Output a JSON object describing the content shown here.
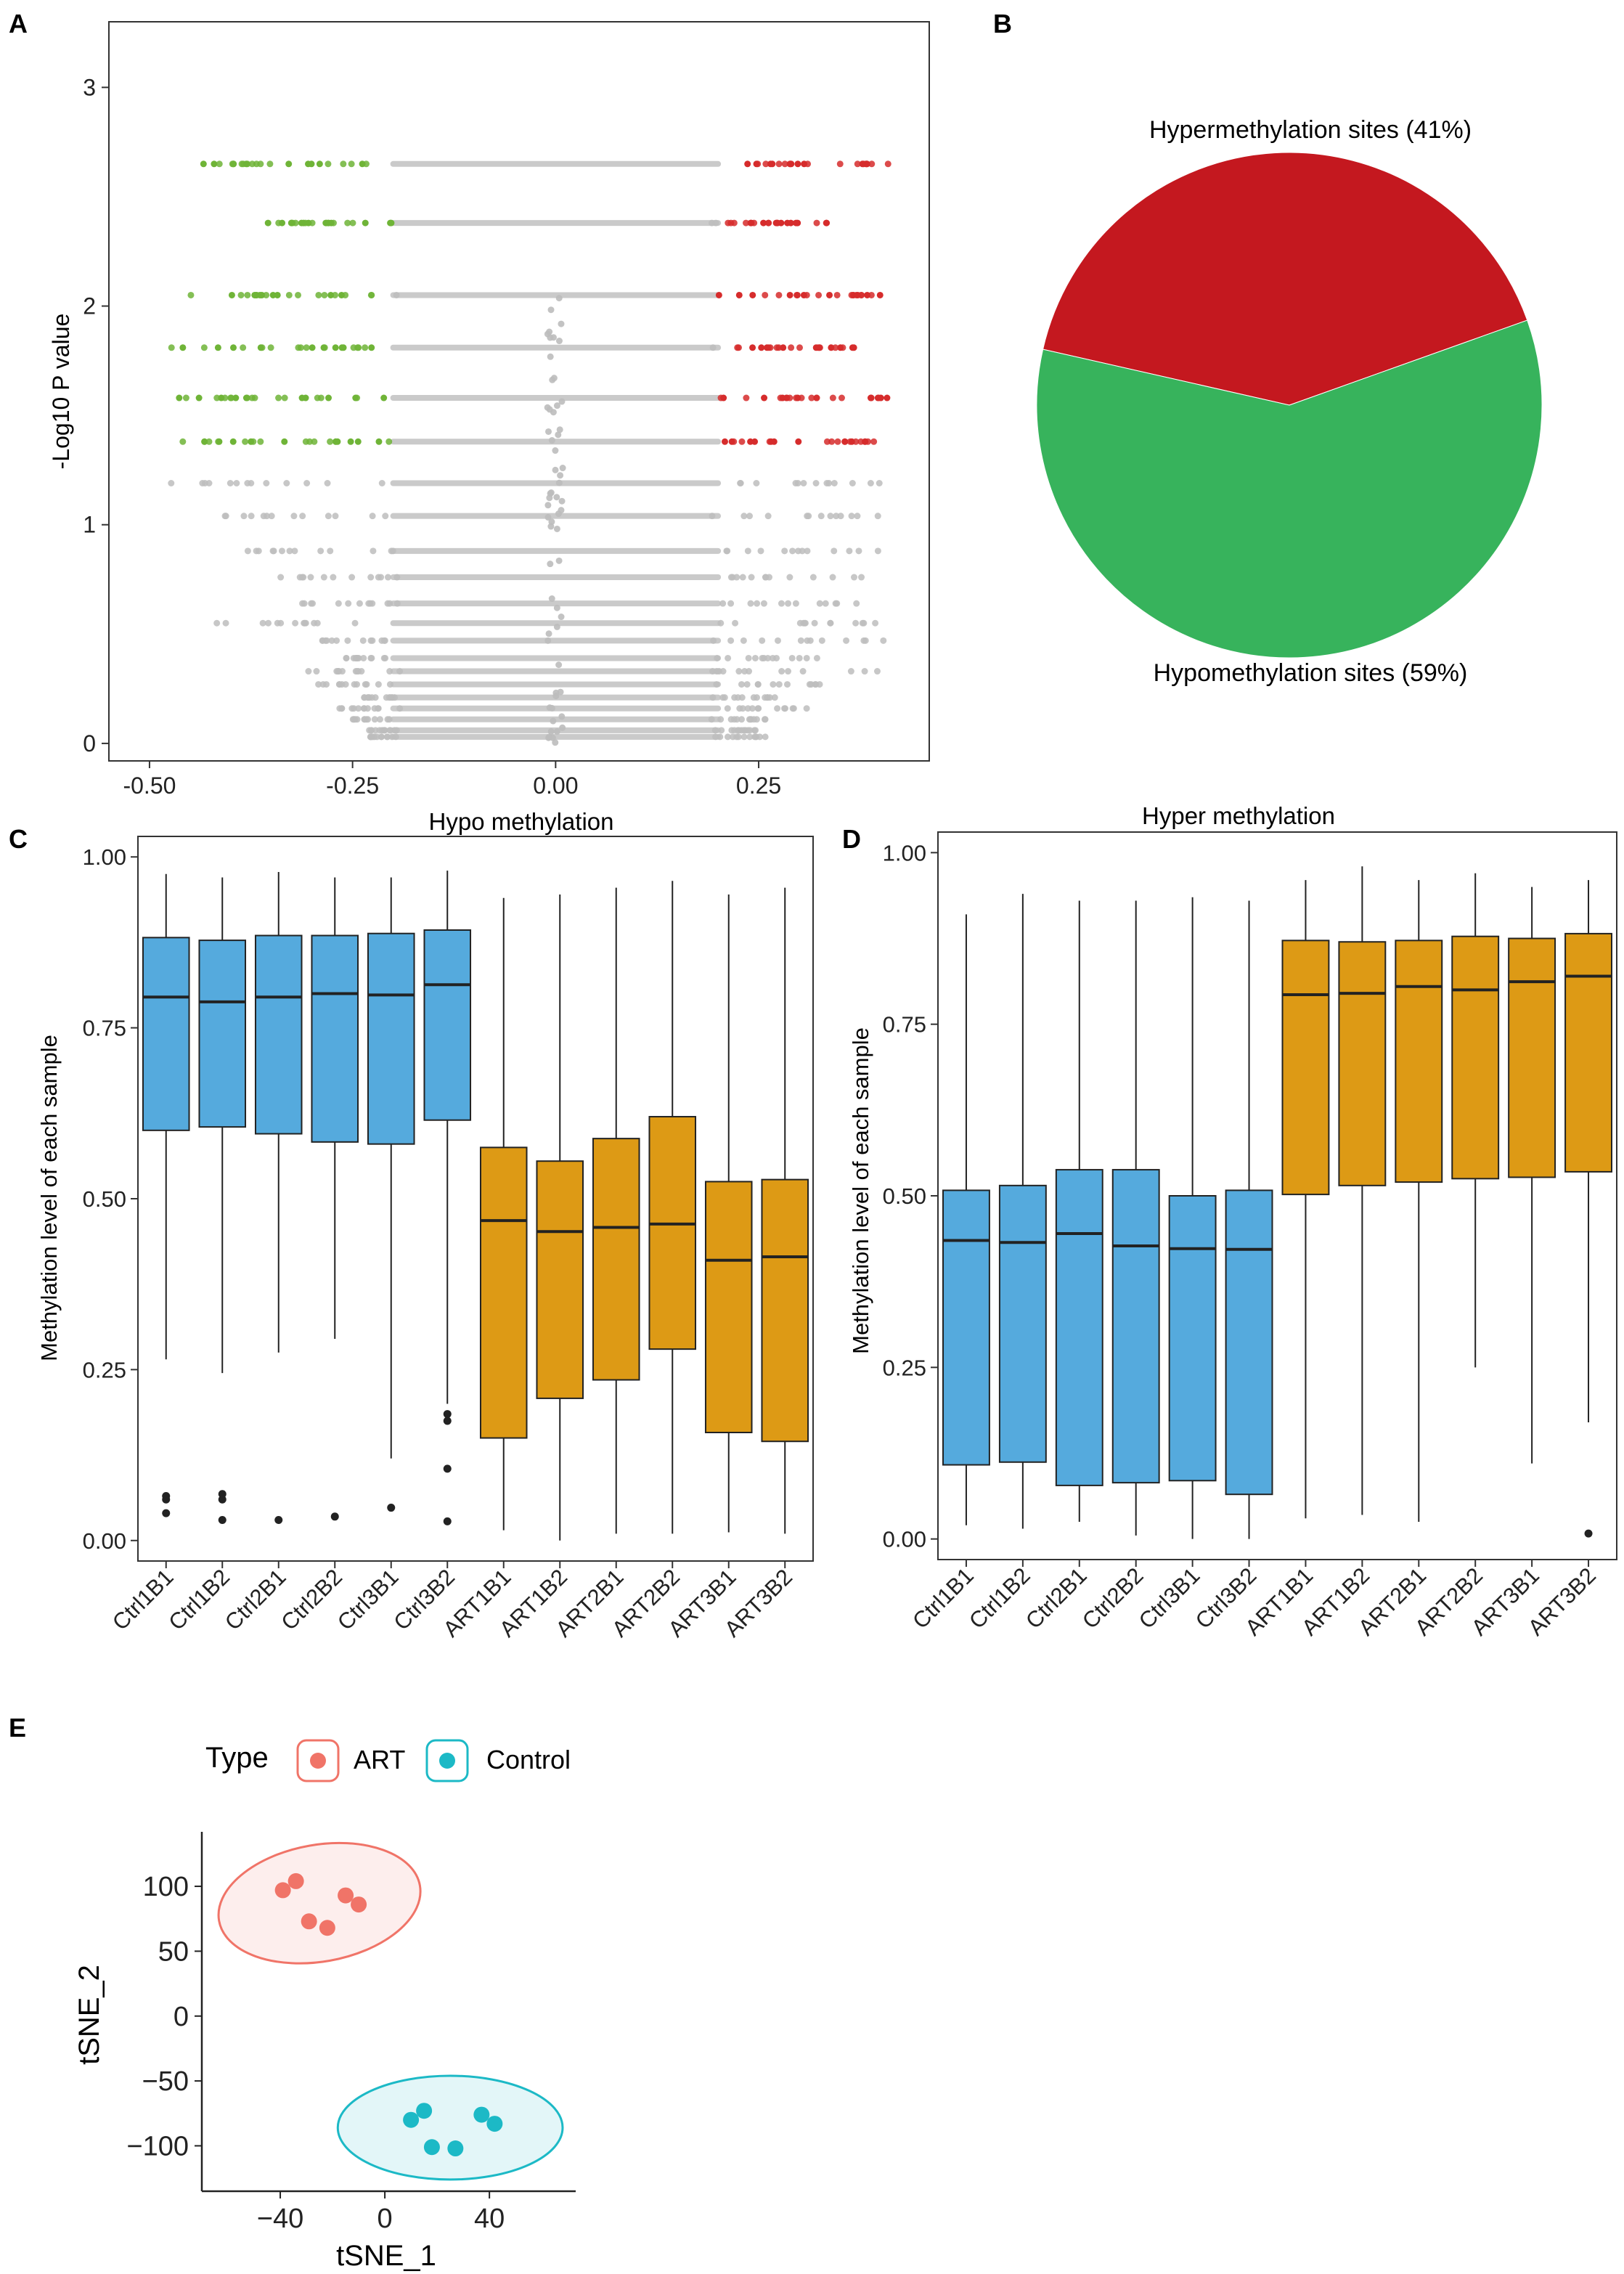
{
  "colors": {
    "grey": "#bdbdbd",
    "green": "#6fb437",
    "red": "#d62c2c",
    "pie_hyper": "#c4181f",
    "pie_hypo": "#37b35c",
    "ctrl_fill": "#55aadd",
    "art_fill": "#dd9a15",
    "art_point": "#f07468",
    "ctrl_point": "#1cb9c6"
  },
  "chart_data": [
    {
      "panel": "A",
      "type": "scatter",
      "title": "",
      "xlabel": "",
      "ylabel": "-Log10 P value",
      "xlim": [
        -0.55,
        0.46
      ],
      "ylim": [
        -0.08,
        3.3
      ],
      "xticks": [
        -0.5,
        -0.25,
        0.0,
        0.25
      ],
      "xtick_labels": [
        "-0.50",
        "-0.25",
        "0.00",
        "0.25"
      ],
      "yticks": [
        0,
        1,
        2,
        3
      ],
      "ytick_labels": [
        "0",
        "1",
        "2",
        "3"
      ],
      "levels": [
        {
          "y": 2.65,
          "xmin": -0.44,
          "xmax": 0.41,
          "sig": true
        },
        {
          "y": 2.38,
          "xmin": -0.37,
          "xmax": 0.34,
          "sig": true
        },
        {
          "y": 2.05,
          "xmin": -0.45,
          "xmax": 0.4,
          "sig": true
        },
        {
          "y": 1.81,
          "xmin": -0.48,
          "xmax": 0.37,
          "sig": true
        },
        {
          "y": 1.58,
          "xmin": -0.47,
          "xmax": 0.41,
          "sig": true
        },
        {
          "y": 1.38,
          "xmin": -0.48,
          "xmax": 0.4,
          "sig": true
        },
        {
          "y": 1.19,
          "xmin": -0.48,
          "xmax": 0.4,
          "sig": false
        },
        {
          "y": 1.04,
          "xmin": -0.41,
          "xmax": 0.4,
          "sig": false
        },
        {
          "y": 0.88,
          "xmin": -0.38,
          "xmax": 0.4,
          "sig": false
        },
        {
          "y": 0.76,
          "xmin": -0.36,
          "xmax": 0.39,
          "sig": false
        },
        {
          "y": 0.64,
          "xmin": -0.32,
          "xmax": 0.38,
          "sig": false
        },
        {
          "y": 0.55,
          "xmin": -0.46,
          "xmax": 0.4,
          "sig": false
        },
        {
          "y": 0.47,
          "xmin": -0.29,
          "xmax": 0.41,
          "sig": false
        },
        {
          "y": 0.39,
          "xmin": -0.26,
          "xmax": 0.33,
          "sig": false
        },
        {
          "y": 0.33,
          "xmin": -0.31,
          "xmax": 0.4,
          "sig": false
        },
        {
          "y": 0.27,
          "xmin": -0.3,
          "xmax": 0.34,
          "sig": false
        },
        {
          "y": 0.21,
          "xmin": -0.24,
          "xmax": 0.27,
          "sig": false
        },
        {
          "y": 0.16,
          "xmin": -0.27,
          "xmax": 0.31,
          "sig": false
        },
        {
          "y": 0.11,
          "xmin": -0.25,
          "xmax": 0.26,
          "sig": false
        },
        {
          "y": 0.06,
          "xmin": -0.23,
          "xmax": 0.25,
          "sig": false
        },
        {
          "y": 0.03,
          "xmin": -0.23,
          "xmax": 0.26,
          "sig": false
        }
      ],
      "hypo_threshold": -0.2,
      "hyper_threshold": 0.2
    },
    {
      "panel": "B",
      "type": "pie",
      "title": "",
      "labels": [
        "Hypermethylation sites (41%)",
        "Hypomethylation sites (59%)"
      ],
      "values": [
        41,
        59
      ]
    },
    {
      "panel": "C",
      "type": "box",
      "title": "Hypo methylation",
      "xlabel": "",
      "ylabel": "Methylation level of each sample",
      "ylim": [
        -0.03,
        1.03
      ],
      "yticks": [
        0,
        0.25,
        0.5,
        0.75,
        1.0
      ],
      "ytick_labels": [
        "0.00",
        "0.25",
        "0.50",
        "0.75",
        "1.00"
      ],
      "categories": [
        "Ctrl1B1",
        "Ctrl1B2",
        "Ctrl2B1",
        "Ctrl2B2",
        "Ctrl3B1",
        "Ctrl3B2",
        "ART1B1",
        "ART1B2",
        "ART2B1",
        "ART2B2",
        "ART3B1",
        "ART3B2"
      ],
      "groups": [
        "Control",
        "Control",
        "Control",
        "Control",
        "Control",
        "Control",
        "ART",
        "ART",
        "ART",
        "ART",
        "ART",
        "ART"
      ],
      "whisker_low": [
        0.265,
        0.245,
        0.275,
        0.295,
        0.12,
        0.2,
        0.015,
        0.0,
        0.01,
        0.01,
        0.012,
        0.01
      ],
      "q1": [
        0.6,
        0.605,
        0.595,
        0.583,
        0.58,
        0.615,
        0.15,
        0.208,
        0.235,
        0.28,
        0.158,
        0.145
      ],
      "median": [
        0.795,
        0.788,
        0.795,
        0.8,
        0.798,
        0.813,
        0.468,
        0.452,
        0.458,
        0.463,
        0.41,
        0.415
      ],
      "q3": [
        0.882,
        0.878,
        0.885,
        0.885,
        0.888,
        0.893,
        0.575,
        0.555,
        0.588,
        0.62,
        0.525,
        0.528
      ],
      "whisker_high": [
        0.975,
        0.97,
        0.978,
        0.97,
        0.97,
        0.98,
        0.94,
        0.945,
        0.955,
        0.965,
        0.945,
        0.955
      ],
      "outliers": [
        [
          0.065,
          0.06,
          0.04
        ],
        [
          0.068,
          0.06,
          0.03
        ],
        [
          0.03
        ],
        [
          0.035
        ],
        [
          0.048
        ],
        [
          0.185,
          0.175,
          0.105,
          0.028
        ],
        [],
        [],
        [],
        [],
        [],
        []
      ]
    },
    {
      "panel": "D",
      "type": "box",
      "title": "Hyper methylation",
      "xlabel": "",
      "ylabel": "Methylation level of each sample",
      "ylim": [
        -0.03,
        1.03
      ],
      "yticks": [
        0,
        0.25,
        0.5,
        0.75,
        1.0
      ],
      "ytick_labels": [
        "0.00",
        "0.25",
        "0.50",
        "0.75",
        "1.00"
      ],
      "categories": [
        "Ctrl1B1",
        "Ctrl1B2",
        "Ctrl2B1",
        "Ctrl2B2",
        "Ctrl3B1",
        "Ctrl3B2",
        "ART1B1",
        "ART1B2",
        "ART2B1",
        "ART2B2",
        "ART3B1",
        "ART3B2"
      ],
      "groups": [
        "Control",
        "Control",
        "Control",
        "Control",
        "Control",
        "Control",
        "ART",
        "ART",
        "ART",
        "ART",
        "ART",
        "ART"
      ],
      "whisker_low": [
        0.02,
        0.015,
        0.025,
        0.005,
        0.0,
        0.0,
        0.03,
        0.035,
        0.025,
        0.25,
        0.11,
        0.17
      ],
      "q1": [
        0.108,
        0.112,
        0.078,
        0.082,
        0.085,
        0.065,
        0.502,
        0.515,
        0.52,
        0.525,
        0.527,
        0.535
      ],
      "median": [
        0.435,
        0.432,
        0.445,
        0.427,
        0.423,
        0.422,
        0.793,
        0.795,
        0.805,
        0.8,
        0.812,
        0.82
      ],
      "q3": [
        0.508,
        0.515,
        0.538,
        0.538,
        0.5,
        0.508,
        0.872,
        0.87,
        0.872,
        0.878,
        0.875,
        0.882
      ],
      "whisker_high": [
        0.91,
        0.94,
        0.93,
        0.93,
        0.935,
        0.93,
        0.96,
        0.98,
        0.96,
        0.97,
        0.95,
        0.96
      ],
      "outliers": [
        [],
        [],
        [],
        [],
        [],
        [],
        [],
        [],
        [],
        [],
        [],
        [
          0.008
        ]
      ]
    },
    {
      "panel": "E",
      "type": "scatter",
      "title": "",
      "xlabel": "tSNE_1",
      "ylabel": "tSNE_2",
      "xlim": [
        -70,
        73
      ],
      "ylim": [
        -135,
        142
      ],
      "xticks": [
        -40,
        0,
        40
      ],
      "xtick_labels": [
        "−40",
        "0",
        "40"
      ],
      "yticks": [
        100,
        50,
        0,
        -50,
        -100
      ],
      "ytick_labels": [
        "100",
        "50",
        "0",
        "−50",
        "−100"
      ],
      "legend_title": "Type",
      "legend_position": "top",
      "series": [
        {
          "name": "ART",
          "points": [
            [
              -39,
              97
            ],
            [
              -34,
              104
            ],
            [
              -29,
              73
            ],
            [
              -22,
              68
            ],
            [
              -15,
              93
            ],
            [
              -10,
              86
            ]
          ],
          "ellipse": {
            "cx": -25,
            "cy": 87,
            "rx": 39,
            "ry": 45,
            "angle": -10
          }
        },
        {
          "name": "Control",
          "points": [
            [
              10,
              -80
            ],
            [
              15,
              -73
            ],
            [
              18,
              -101
            ],
            [
              27,
              -102
            ],
            [
              37,
              -76
            ],
            [
              42,
              -83
            ]
          ],
          "ellipse": {
            "cx": 25,
            "cy": -86,
            "rx": 43,
            "ry": 40,
            "angle": 0
          }
        }
      ]
    }
  ],
  "panel_labels": {
    "A": "A",
    "B": "B",
    "C": "C",
    "D": "D",
    "E": "E"
  }
}
